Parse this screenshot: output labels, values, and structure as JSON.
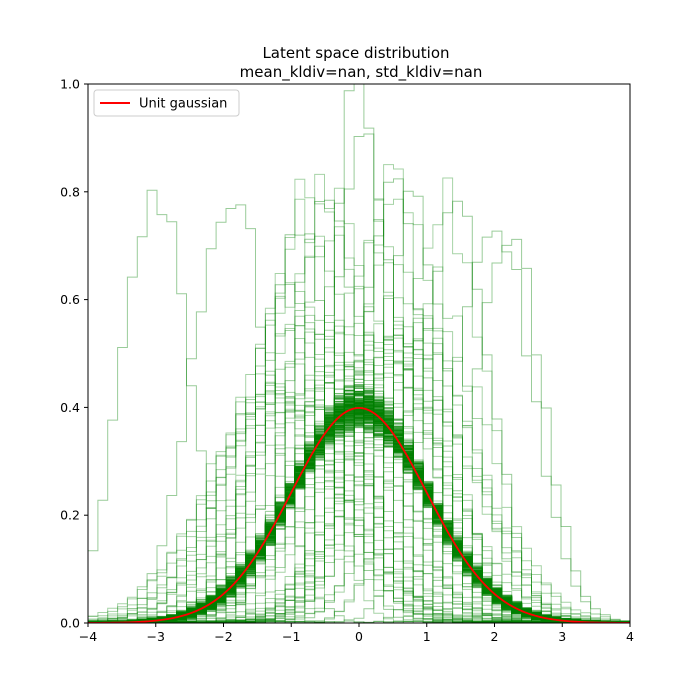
{
  "chart_data": {
    "type": "line",
    "title": [
      "Latent space distribution",
      "mean_kldiv=nan, std_kldiv=nan"
    ],
    "xlabel": "",
    "ylabel": "",
    "xlim": [
      -4,
      4
    ],
    "ylim": [
      0,
      1.0
    ],
    "xticks": [
      -4,
      -3,
      -2,
      -1,
      0,
      1,
      2,
      3,
      4
    ],
    "xtick_labels": [
      "−4",
      "−3",
      "−2",
      "−1",
      "0",
      "1",
      "2",
      "3",
      "4"
    ],
    "yticks": [
      0.0,
      0.2,
      0.4,
      0.6,
      0.8,
      1.0
    ],
    "ytick_labels": [
      "0.0",
      "0.2",
      "0.4",
      "0.6",
      "0.8",
      "1.0"
    ],
    "grid": false,
    "legend": {
      "placement": "upper-left",
      "entries": [
        {
          "label": "Unit gaussian",
          "color": "#ff0000"
        }
      ]
    },
    "colors": {
      "histograms": "#008000",
      "reference": "#ff0000"
    },
    "reference_curve": {
      "name": "Unit gaussian",
      "function": "standard normal pdf",
      "mean": 0,
      "std": 1,
      "peak": 0.399
    },
    "histogram_series": {
      "style": "step",
      "approx_count": 300,
      "bulk_shape": "close to unit gaussian",
      "bulk_peak_range": [
        0.37,
        0.43
      ],
      "outlier_series": [
        {
          "center": -3.0,
          "std": 0.5,
          "peak": 0.8
        },
        {
          "center": -1.9,
          "std": 0.55,
          "peak": 0.8
        },
        {
          "center": -0.9,
          "std": 0.52,
          "peak": 0.75
        },
        {
          "center": -0.5,
          "std": 0.5,
          "peak": 0.79
        },
        {
          "center": 0.0,
          "std": 0.4,
          "peak": 1.0
        },
        {
          "center": 0.1,
          "std": 0.45,
          "peak": 0.9
        },
        {
          "center": 0.5,
          "std": 0.5,
          "peak": 0.8
        },
        {
          "center": 0.8,
          "std": 0.5,
          "peak": 0.77
        },
        {
          "center": 1.45,
          "std": 0.5,
          "peak": 0.76
        },
        {
          "center": 2.0,
          "std": 0.55,
          "peak": 0.75
        },
        {
          "center": 2.2,
          "std": 0.5,
          "peak": 0.73
        }
      ]
    }
  }
}
